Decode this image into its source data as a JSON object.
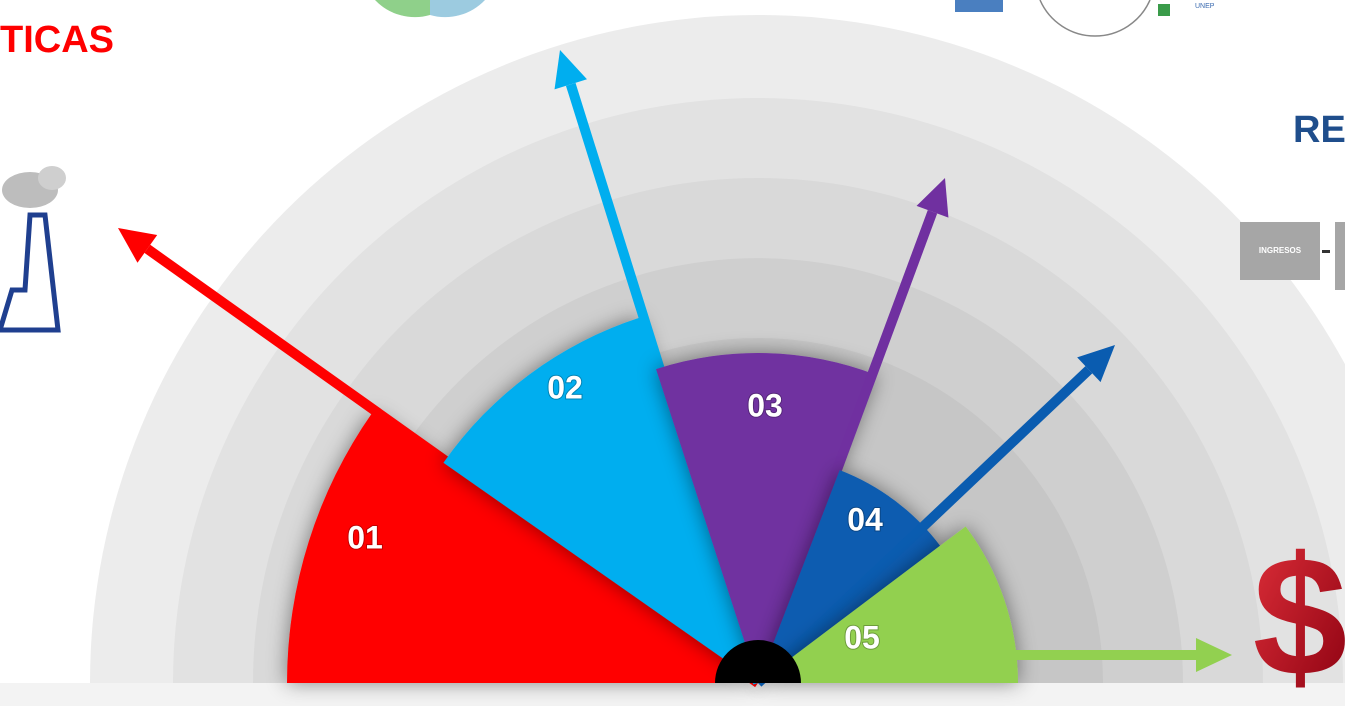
{
  "header": {
    "left_title": "TICAS",
    "right_title": "RE"
  },
  "formula": {
    "term": "INGRESOS"
  },
  "logo": {
    "caption": "UNEP"
  },
  "segments": [
    {
      "label": "01",
      "color": "#ff0000"
    },
    {
      "label": "02",
      "color": "#00aeef"
    },
    {
      "label": "03",
      "color": "#7030a0"
    },
    {
      "label": "04",
      "color": "#0a5cb0"
    },
    {
      "label": "05",
      "color": "#92d050"
    }
  ]
}
